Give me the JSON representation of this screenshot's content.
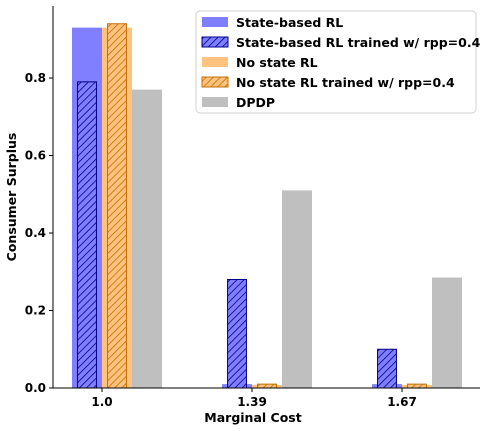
{
  "chart_data": {
    "type": "bar",
    "title": "",
    "xlabel": "Marginal Cost",
    "ylabel": "Consumer Surplus",
    "categories": [
      "1.0",
      "1.39",
      "1.67"
    ],
    "ylim": [
      0,
      0.98
    ],
    "yticks": [
      "0.0",
      "0.2",
      "0.4",
      "0.6",
      "0.8"
    ],
    "grid": false,
    "legend_position": "top-right",
    "series": [
      {
        "name": "State-based RL",
        "values": [
          0.93,
          0.01,
          0.01
        ],
        "color": "#7f7fff",
        "hatch": false
      },
      {
        "name": "State-based RL trained w/ rpp=0.4",
        "values": [
          0.79,
          0.28,
          0.1
        ],
        "color": "#7f7fff",
        "hatch": true,
        "edge": "#00008b"
      },
      {
        "name": "No state RL",
        "values": [
          0.93,
          0.008,
          0.008
        ],
        "color": "#ffc37f",
        "hatch": false
      },
      {
        "name": "No state RL trained w/ rpp=0.4",
        "values": [
          0.94,
          0.01,
          0.01
        ],
        "color": "#ffc37f",
        "hatch": true,
        "edge": "#c46d00"
      },
      {
        "name": "DPDP",
        "values": [
          0.77,
          0.51,
          0.285
        ],
        "color": "#bfbfbf",
        "hatch": false
      }
    ]
  }
}
